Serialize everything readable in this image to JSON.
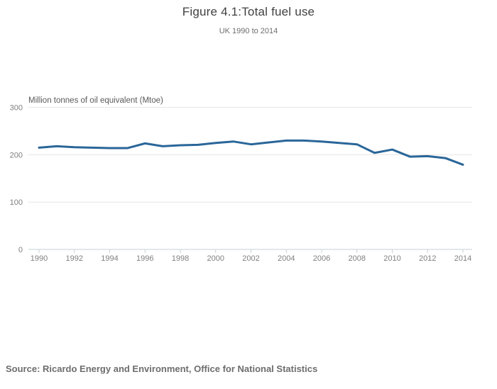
{
  "header": {
    "title": "Figure 4.1:Total fuel use",
    "subtitle": "UK 1990 to 2014"
  },
  "source_note": "Source: Ricardo Energy and Environment, Office for National Statistics",
  "colors": {
    "line": "#2a6699",
    "gridline": "#e6e6e6",
    "axis": "#c6d0d9",
    "tick_label": "#7f7f7f"
  },
  "chart_data": {
    "type": "line",
    "title": "Figure 4.1:Total fuel use",
    "subtitle": "UK 1990 to 2014",
    "ylabel": "Million tonnes of oil equivalent (Mtoe)",
    "xlabel": "",
    "x": [
      1990,
      1991,
      1992,
      1993,
      1994,
      1995,
      1996,
      1997,
      1998,
      1999,
      2000,
      2001,
      2002,
      2003,
      2004,
      2005,
      2006,
      2007,
      2008,
      2009,
      2010,
      2011,
      2012,
      2013,
      2014
    ],
    "series": [
      {
        "name": "Total fuel use (Mtoe)",
        "values": [
          215,
          218,
          216,
          215,
          214,
          214,
          224,
          218,
          220,
          221,
          225,
          228,
          222,
          226,
          230,
          230,
          228,
          225,
          222,
          204,
          211,
          196,
          197,
          193,
          179
        ]
      }
    ],
    "ylim": [
      0,
      300
    ],
    "yticks": [
      0,
      100,
      200,
      300
    ],
    "xticks": [
      1990,
      1992,
      1994,
      1996,
      1998,
      2000,
      2002,
      2004,
      2006,
      2008,
      2010,
      2012,
      2014
    ],
    "grid": "horizontal-only",
    "legend": "none",
    "line_color": "#2a6699"
  }
}
